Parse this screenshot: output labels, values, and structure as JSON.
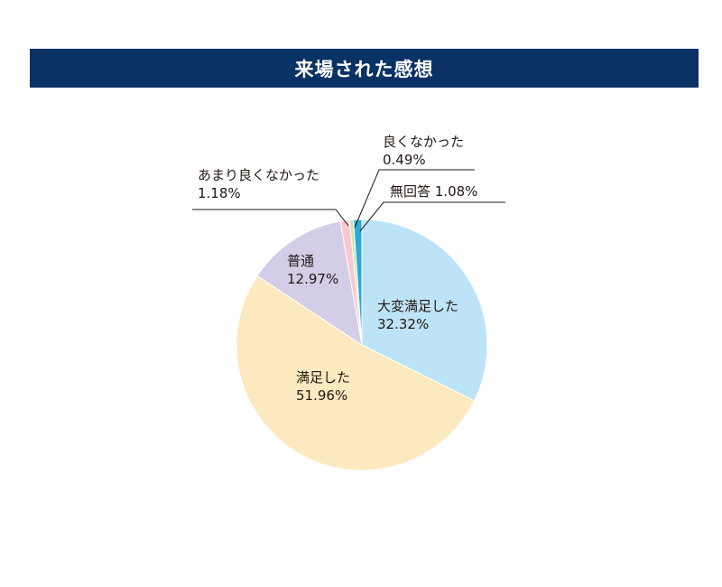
{
  "title": "来場された感想",
  "colors": {
    "title_bg": "#0b3264",
    "title_text": "#ffffff",
    "slice_stroke": "#ffffff",
    "leader": "#231815"
  },
  "chart_data": {
    "type": "pie",
    "title": "来場された感想",
    "start": "12 o'clock",
    "direction": "clockwise",
    "slices": [
      {
        "name": "大変満足した",
        "value": 32.32,
        "label": "32.32%",
        "color": "#bde3f7"
      },
      {
        "name": "満足した",
        "value": 51.96,
        "label": "51.96%",
        "color": "#fde9bf"
      },
      {
        "name": "普通",
        "value": 12.97,
        "label": "12.97%",
        "color": "#d4cde7"
      },
      {
        "name": "あまり良くなかった",
        "value": 1.18,
        "label": "1.18%",
        "color": "#f7c9cf"
      },
      {
        "name": "良くなかった",
        "value": 0.49,
        "label": "0.49%",
        "color": "#cde6b1"
      },
      {
        "name": "無回答",
        "value": 1.08,
        "label": "1.08%",
        "color": "#2ea9d7"
      }
    ]
  }
}
